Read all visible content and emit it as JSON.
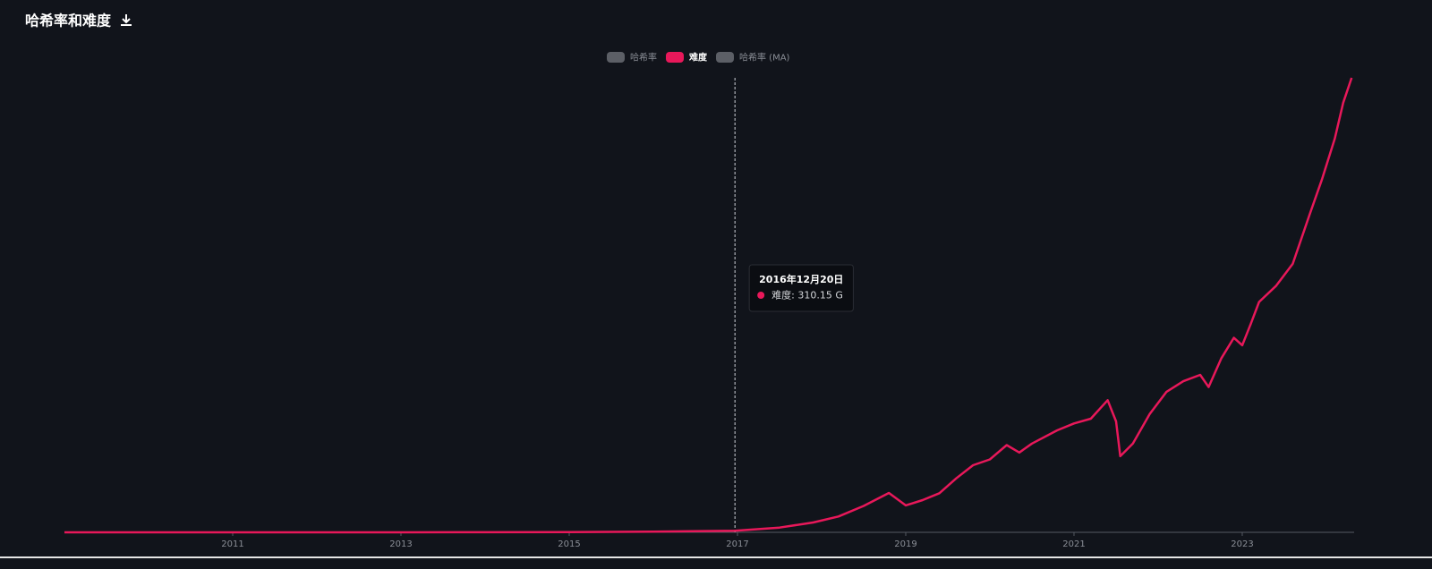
{
  "chart_data": {
    "type": "line",
    "title": "哈希率和难度",
    "x": [
      2009.0,
      2011.0,
      2013.0,
      2014.0,
      2015.0,
      2016.0,
      2016.97,
      2017.5,
      2017.9,
      2018.2,
      2018.5,
      2018.8,
      2019.0,
      2019.2,
      2019.4,
      2019.6,
      2019.8,
      2020.0,
      2020.2,
      2020.35,
      2020.5,
      2020.8,
      2021.0,
      2021.2,
      2021.4,
      2021.5,
      2021.55,
      2021.7,
      2021.9,
      2022.1,
      2022.3,
      2022.5,
      2022.6,
      2022.75,
      2022.9,
      2023.0,
      2023.1,
      2023.2,
      2023.4,
      2023.6,
      2023.8,
      2023.95,
      2024.1,
      2024.2,
      2024.3
    ],
    "series": [
      {
        "name": "哈希率",
        "color": "#5c5f66",
        "visible": false
      },
      {
        "name": "难度",
        "color": "#e8185a",
        "visible": true,
        "values": [
          0,
          0.001,
          0.01,
          20,
          44,
          120,
          310.15,
          900,
          1860,
          3000,
          5000,
          7450,
          5100,
          6100,
          7400,
          10200,
          12700,
          13800,
          16500,
          15100,
          16800,
          19300,
          20600,
          21500,
          25000,
          21000,
          14400,
          16800,
          22400,
          26600,
          28600,
          29800,
          27500,
          32900,
          36800,
          35400,
          39400,
          43600,
          46600,
          50800,
          60100,
          66900,
          74500,
          81300,
          86000
        ]
      },
      {
        "name": "哈希率 (MA)",
        "color": "#5c5f66",
        "visible": false
      }
    ],
    "xlim": [
      2009.0,
      2024.33
    ],
    "xticks": [
      2011,
      2013,
      2015,
      2017,
      2019,
      2021,
      2023
    ],
    "ylim": [
      0,
      86000
    ],
    "grid": false,
    "tooltip": {
      "x": 2016.97,
      "value": 310.15,
      "title": "2016年12月20日",
      "value_label": "难度: 310.15 G"
    }
  }
}
